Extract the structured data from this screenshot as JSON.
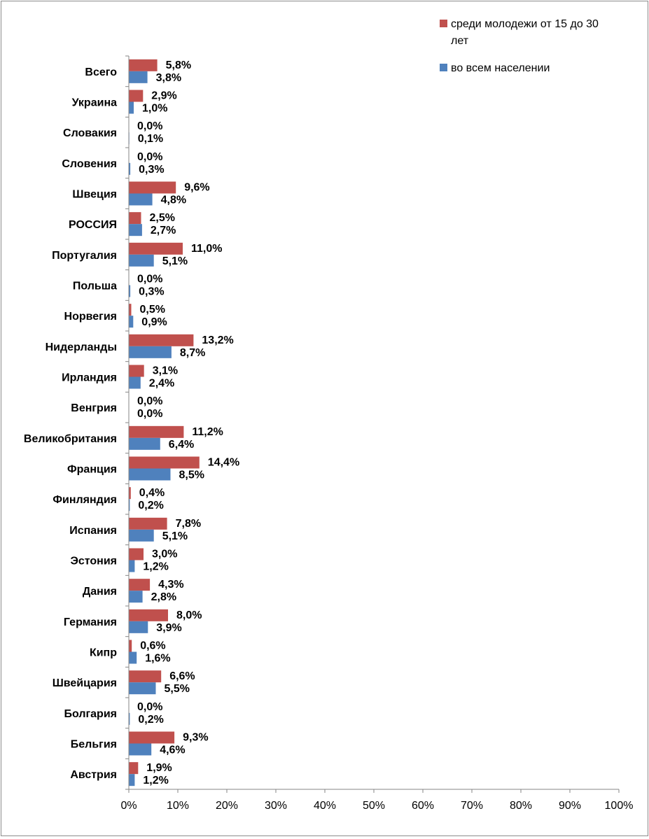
{
  "chart_data": {
    "type": "bar",
    "orientation": "horizontal",
    "categories": [
      "Всего",
      "Украина",
      "Словакия",
      "Словения",
      "Швеция",
      "РОССИЯ",
      "Португалия",
      "Польша",
      "Норвегия",
      "Нидерланды",
      "Ирландия",
      "Венгрия",
      "Великобритания",
      "Франция",
      "Финляндия",
      "Испания",
      "Эстония",
      "Дания",
      "Германия",
      "Кипр",
      "Швейцария",
      "Болгария",
      "Бельгия",
      "Австрия"
    ],
    "series": [
      {
        "name": "среди молодежи от 15 до 30 лет",
        "color": "#C0504D",
        "values": [
          5.8,
          2.9,
          0.0,
          0.0,
          9.6,
          2.5,
          11.0,
          0.0,
          0.5,
          13.2,
          3.1,
          0.0,
          11.2,
          14.4,
          0.4,
          7.8,
          3.0,
          4.3,
          8.0,
          0.6,
          6.6,
          0.0,
          9.3,
          1.9
        ],
        "labels": [
          "5,8%",
          "2,9%",
          "0,0%",
          "0,0%",
          "9,6%",
          "2,5%",
          "11,0%",
          "0,0%",
          "0,5%",
          "13,2%",
          "3,1%",
          "0,0%",
          "11,2%",
          "14,4%",
          "0,4%",
          "7,8%",
          "3,0%",
          "4,3%",
          "8,0%",
          "0,6%",
          "6,6%",
          "0,0%",
          "9,3%",
          "1,9%"
        ]
      },
      {
        "name": "во всем населении",
        "color": "#4F81BD",
        "values": [
          3.8,
          1.0,
          0.1,
          0.3,
          4.8,
          2.7,
          5.1,
          0.3,
          0.9,
          8.7,
          2.4,
          0.0,
          6.4,
          8.5,
          0.2,
          5.1,
          1.2,
          2.8,
          3.9,
          1.6,
          5.5,
          0.2,
          4.6,
          1.2
        ],
        "labels": [
          "3,8%",
          "1,0%",
          "0,1%",
          "0,3%",
          "4,8%",
          "2,7%",
          "5,1%",
          "0,3%",
          "0,9%",
          "8,7%",
          "2,4%",
          "0,0%",
          "6,4%",
          "8,5%",
          "0,2%",
          "5,1%",
          "1,2%",
          "2,8%",
          "3,9%",
          "1,6%",
          "5,5%",
          "0,2%",
          "4,6%",
          "1,2%"
        ]
      }
    ],
    "xlim": [
      0,
      100
    ],
    "ticks": [
      "0%",
      "10%",
      "20%",
      "30%",
      "40%",
      "50%",
      "60%",
      "70%",
      "80%",
      "90%",
      "100%"
    ],
    "grid": false,
    "legend_position": "top-right",
    "data_labels": true
  }
}
